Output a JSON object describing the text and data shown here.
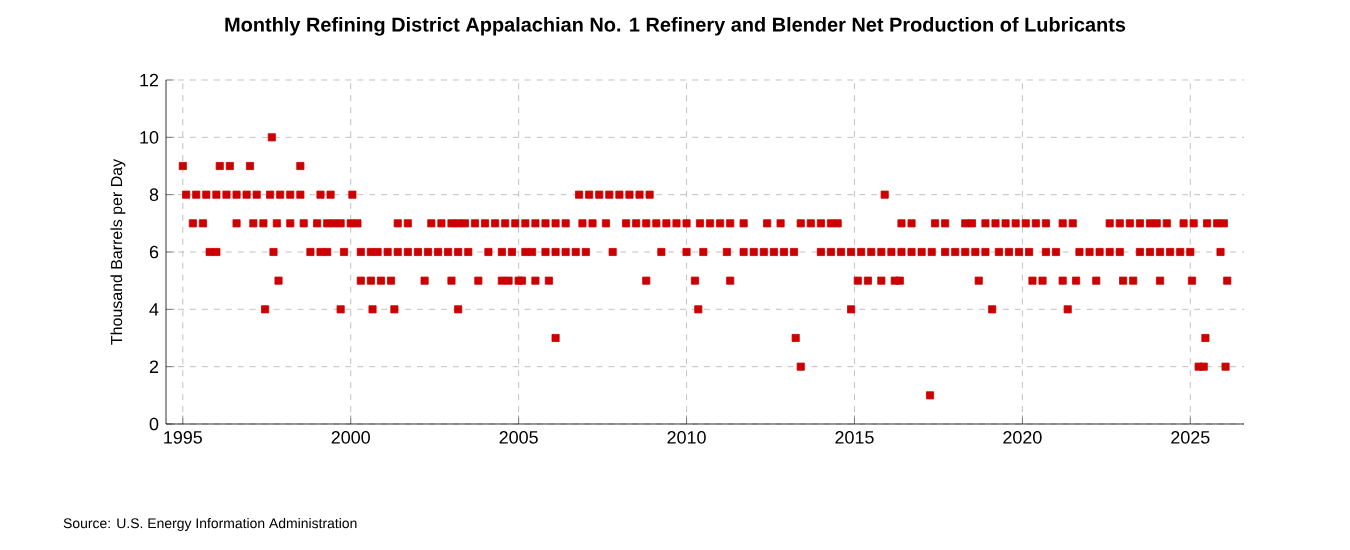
{
  "chart_data": {
    "type": "scatter",
    "title": "Monthly Refining District Appalachian No. 1 Refinery and Blender Net Production of Lubricants",
    "ylabel": "Thousand Barrels per Day",
    "annotations": [
      "Source: U.S. Energy Information Administration"
    ],
    "xlim": [
      1994.5,
      2026.6
    ],
    "xticks": [
      1995,
      2000,
      2005,
      2010,
      2015,
      2020,
      2025
    ],
    "ylim": [
      0,
      12
    ],
    "yticks": [
      0,
      2,
      4,
      6,
      8,
      10,
      12
    ],
    "grid": true,
    "marker": "square",
    "color": "#cc0000",
    "x": [
      1995.0,
      1996.1,
      1996.4,
      1997.0,
      1998.5,
      1997.65,
      1995.1,
      1995.4,
      1995.7,
      1996.0,
      1996.3,
      1996.6,
      1996.9,
      1997.2,
      1997.6,
      1997.9,
      1998.2,
      1998.5,
      1999.1,
      1999.4,
      2000.05,
      2006.8,
      2007.1,
      2007.4,
      2007.7,
      2008.0,
      2008.3,
      2008.6,
      2008.9,
      2015.9,
      1995.3,
      1995.6,
      1996.6,
      1997.1,
      1997.4,
      1997.8,
      1998.2,
      1998.6,
      1999.0,
      1999.3,
      1999.5,
      1999.7,
      2000.0,
      2000.2,
      2001.4,
      2001.7,
      2002.4,
      2002.7,
      2003.0,
      2003.2,
      2003.4,
      2003.7,
      2004.0,
      2004.3,
      2004.6,
      2004.9,
      2005.2,
      2005.5,
      2005.8,
      2006.1,
      2006.4,
      2006.9,
      2007.2,
      2007.6,
      2008.2,
      2008.5,
      2008.8,
      2009.1,
      2009.4,
      2009.7,
      2010.0,
      2010.4,
      2010.7,
      2011.0,
      2011.3,
      2011.7,
      2012.4,
      2012.8,
      2013.4,
      2013.7,
      2014.0,
      2014.3,
      2014.5,
      2016.4,
      2016.7,
      2017.4,
      2017.7,
      2018.3,
      2018.5,
      2018.9,
      2019.2,
      2019.5,
      2019.8,
      2020.1,
      2020.4,
      2020.7,
      2021.2,
      2021.5,
      2022.6,
      2022.9,
      2023.2,
      2023.5,
      2023.8,
      2024.0,
      2024.3,
      2024.8,
      2025.1,
      2025.5,
      2025.8,
      2026.0,
      1995.8,
      1996.0,
      1997.7,
      1998.8,
      1999.1,
      1999.3,
      1999.8,
      2000.3,
      2000.6,
      2000.8,
      2001.1,
      2001.4,
      2001.7,
      2002.0,
      2002.3,
      2002.6,
      2002.9,
      2003.2,
      2003.5,
      2004.1,
      2004.5,
      2004.8,
      2005.2,
      2005.4,
      2005.8,
      2006.1,
      2006.4,
      2006.7,
      2007.0,
      2007.8,
      2009.25,
      2010.0,
      2010.5,
      2011.2,
      2011.7,
      2012.0,
      2012.3,
      2012.6,
      2012.9,
      2013.2,
      2014.0,
      2014.3,
      2014.6,
      2014.9,
      2015.2,
      2015.5,
      2015.8,
      2016.1,
      2016.4,
      2016.7,
      2017.0,
      2017.3,
      2017.7,
      2018.0,
      2018.3,
      2018.6,
      2018.9,
      2019.3,
      2019.6,
      2019.9,
      2020.2,
      2020.7,
      2021.0,
      2021.7,
      2022.0,
      2022.3,
      2022.6,
      2022.9,
      2023.5,
      2023.8,
      2024.1,
      2024.4,
      2024.7,
      2025.0,
      2025.9,
      1997.85,
      2000.3,
      2000.6,
      2000.9,
      2001.2,
      2002.2,
      2003.0,
      2003.8,
      2004.5,
      2004.7,
      2005.0,
      2005.1,
      2005.5,
      2005.9,
      2008.8,
      2010.25,
      2011.3,
      2015.1,
      2015.4,
      2015.8,
      2016.2,
      2016.35,
      2018.7,
      2020.3,
      2020.6,
      2021.2,
      2021.6,
      2022.2,
      2023.0,
      2023.3,
      2024.1,
      2025.05,
      2026.1,
      1997.45,
      1999.7,
      2000.65,
      2001.3,
      2003.2,
      2010.35,
      2014.9,
      2019.1,
      2021.35,
      2006.1,
      2013.25,
      2025.45,
      2013.4,
      2025.25,
      2025.4,
      2026.05,
      2017.25
    ],
    "values": [
      9,
      9,
      9,
      9,
      9,
      10,
      8,
      8,
      8,
      8,
      8,
      8,
      8,
      8,
      8,
      8,
      8,
      8,
      8,
      8,
      8,
      8,
      8,
      8,
      8,
      8,
      8,
      8,
      8,
      8,
      7,
      7,
      7,
      7,
      7,
      7,
      7,
      7,
      7,
      7,
      7,
      7,
      7,
      7,
      7,
      7,
      7,
      7,
      7,
      7,
      7,
      7,
      7,
      7,
      7,
      7,
      7,
      7,
      7,
      7,
      7,
      7,
      7,
      7,
      7,
      7,
      7,
      7,
      7,
      7,
      7,
      7,
      7,
      7,
      7,
      7,
      7,
      7,
      7,
      7,
      7,
      7,
      7,
      7,
      7,
      7,
      7,
      7,
      7,
      7,
      7,
      7,
      7,
      7,
      7,
      7,
      7,
      7,
      7,
      7,
      7,
      7,
      7,
      7,
      7,
      7,
      7,
      7,
      7,
      7,
      6,
      6,
      6,
      6,
      6,
      6,
      6,
      6,
      6,
      6,
      6,
      6,
      6,
      6,
      6,
      6,
      6,
      6,
      6,
      6,
      6,
      6,
      6,
      6,
      6,
      6,
      6,
      6,
      6,
      6,
      6,
      6,
      6,
      6,
      6,
      6,
      6,
      6,
      6,
      6,
      6,
      6,
      6,
      6,
      6,
      6,
      6,
      6,
      6,
      6,
      6,
      6,
      6,
      6,
      6,
      6,
      6,
      6,
      6,
      6,
      6,
      6,
      6,
      6,
      6,
      6,
      6,
      6,
      6,
      6,
      6,
      6,
      6,
      6,
      6,
      5,
      5,
      5,
      5,
      5,
      5,
      5,
      5,
      5,
      5,
      5,
      5,
      5,
      5,
      5,
      5,
      5,
      5,
      5,
      5,
      5,
      5,
      5,
      5,
      5,
      5,
      5,
      5,
      5,
      5,
      5,
      5,
      5,
      4,
      4,
      4,
      4,
      4,
      4,
      4,
      4,
      4,
      3,
      3,
      3,
      2,
      2,
      2,
      2,
      1
    ]
  }
}
